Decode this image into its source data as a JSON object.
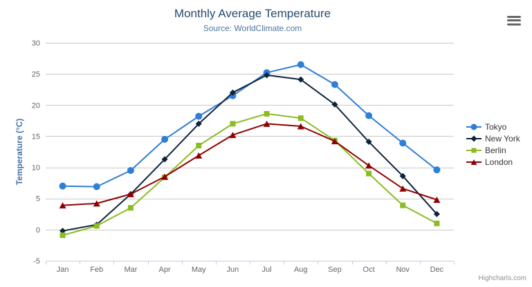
{
  "header": {
    "title": "Monthly Average Temperature",
    "subtitle": "Source: WorldClimate.com"
  },
  "context_menu": {
    "icon": "hamburger-icon"
  },
  "credits": {
    "label": "Highcharts.com"
  },
  "chart_data": {
    "type": "line",
    "title": "Monthly Average Temperature",
    "subtitle": "Source: WorldClimate.com",
    "xlabel": "",
    "ylabel": "Temperature (°C)",
    "ylim": [
      -5,
      30
    ],
    "yticks": [
      -5,
      0,
      5,
      10,
      15,
      20,
      25,
      30
    ],
    "grid": true,
    "legend_position": "right",
    "categories": [
      "Jan",
      "Feb",
      "Mar",
      "Apr",
      "May",
      "Jun",
      "Jul",
      "Aug",
      "Sep",
      "Oct",
      "Nov",
      "Dec"
    ],
    "series": [
      {
        "name": "Tokyo",
        "color": "#2f7ed8",
        "marker": "circle",
        "values": [
          7.0,
          6.9,
          9.5,
          14.5,
          18.2,
          21.5,
          25.2,
          26.5,
          23.3,
          18.3,
          13.9,
          9.6
        ]
      },
      {
        "name": "New York",
        "color": "#0d233a",
        "marker": "diamond",
        "values": [
          -0.2,
          0.8,
          5.7,
          11.3,
          17.0,
          22.0,
          24.8,
          24.1,
          20.1,
          14.1,
          8.6,
          2.5
        ]
      },
      {
        "name": "Berlin",
        "color": "#8bbc21",
        "marker": "square",
        "values": [
          -0.9,
          0.6,
          3.5,
          8.4,
          13.5,
          17.0,
          18.6,
          17.9,
          14.3,
          9.0,
          3.9,
          1.0
        ]
      },
      {
        "name": "London",
        "color": "#910000",
        "marker": "triangle",
        "values": [
          3.9,
          4.2,
          5.7,
          8.5,
          11.9,
          15.2,
          17.0,
          16.6,
          14.2,
          10.3,
          6.6,
          4.8
        ]
      }
    ],
    "style": {
      "grid_line_color": "#c8c8c8",
      "axis_line_color": "#c0d0e0",
      "tick_color": "#c0d0e0",
      "tick_label_color": "#666666"
    }
  }
}
